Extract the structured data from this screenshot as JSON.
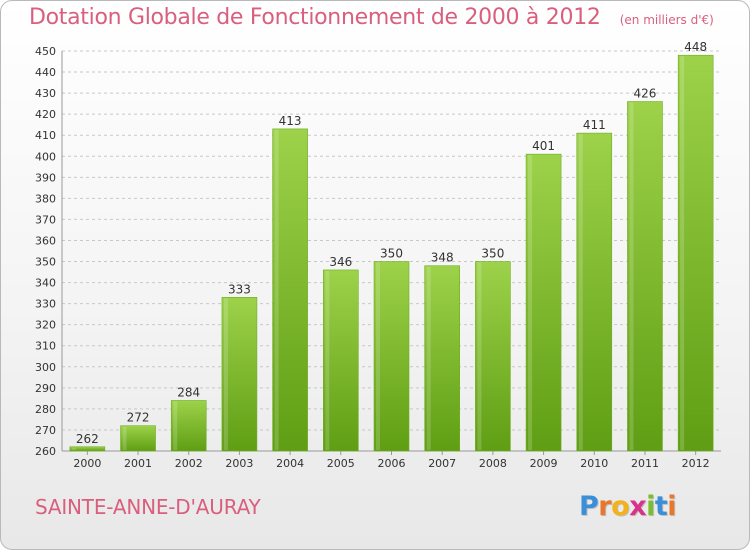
{
  "title": "Dotation Globale de Fonctionnement de 2000 à 2012",
  "subtitle": "(en milliers d'€)",
  "city": "SAINTE-ANNE-D'AURAY",
  "logo": {
    "letters": [
      "P",
      "r",
      "o",
      "x",
      "i",
      "t",
      "i"
    ],
    "colors": [
      "#3a8fd8",
      "#e8762b",
      "#f3b21b",
      "#d9328a",
      "#7bbd2f",
      "#3a8fd8",
      "#e8762b"
    ]
  },
  "colors": {
    "title": "#d95f7d",
    "bar_top": "#9dd24a",
    "bar_bottom": "#5f9e14",
    "grid": "#c8c8c8",
    "axis_text": "#333333"
  },
  "chart_data": {
    "type": "bar",
    "categories": [
      "2000",
      "2001",
      "2002",
      "2003",
      "2004",
      "2005",
      "2006",
      "2007",
      "2008",
      "2009",
      "2010",
      "2011",
      "2012"
    ],
    "values": [
      262,
      272,
      284,
      333,
      413,
      346,
      350,
      348,
      350,
      401,
      411,
      426,
      448
    ],
    "ylim": [
      260,
      450
    ],
    "yticks": [
      260,
      270,
      280,
      290,
      300,
      310,
      320,
      330,
      340,
      350,
      360,
      370,
      380,
      390,
      400,
      410,
      420,
      430,
      440,
      450
    ],
    "grid": true,
    "legend": "none"
  }
}
